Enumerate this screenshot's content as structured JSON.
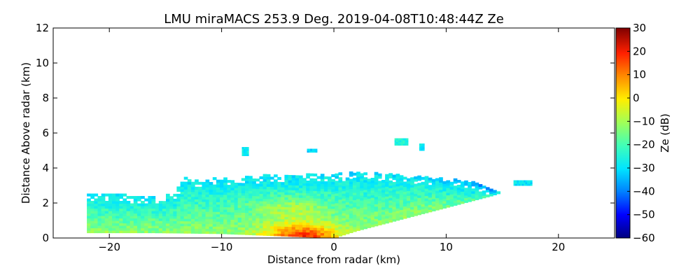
{
  "chart_data": {
    "type": "heatmap",
    "title": "LMU miraMACS 253.9 Deg. 2019-04-08T10:48:44Z  Ze",
    "xlabel": "Distance from radar (km)",
    "ylabel": "Distance Above radar  (km)",
    "xlim": [
      -25,
      25
    ],
    "ylim": [
      0,
      12
    ],
    "xticks": [
      -20,
      -10,
      0,
      10,
      20
    ],
    "xtick_labels": [
      "−20",
      "−10",
      "0",
      "10",
      "20"
    ],
    "yticks": [
      0,
      2,
      4,
      6,
      8,
      10,
      12
    ],
    "ytick_labels": [
      "0",
      "2",
      "4",
      "6",
      "8",
      "10",
      "12"
    ],
    "grid": false,
    "colorbar": {
      "label": "Ze (dB)",
      "range": [
        -60,
        30
      ],
      "ticks": [
        -60,
        -50,
        -40,
        -30,
        -20,
        -10,
        0,
        10,
        20,
        30
      ],
      "tick_labels": [
        "−60",
        "−50",
        "−40",
        "−30",
        "−20",
        "−10",
        "0",
        "10",
        "20",
        "30"
      ],
      "colormap": "jet"
    },
    "field": {
      "description_units": "range-height reflectivity scan",
      "cloud_top_km": [
        [
          -22,
          2.6
        ],
        [
          -20,
          2.55
        ],
        [
          -18,
          2.45
        ],
        [
          -16,
          2.35
        ],
        [
          -14,
          2.6
        ],
        [
          -13.5,
          3.6
        ],
        [
          -12,
          3.3
        ],
        [
          -10,
          3.5
        ],
        [
          -8,
          3.5
        ],
        [
          -6,
          3.6
        ],
        [
          -4,
          3.6
        ],
        [
          -2,
          3.65
        ],
        [
          0,
          3.7
        ],
        [
          2,
          3.75
        ],
        [
          4,
          3.7
        ],
        [
          6,
          3.6
        ],
        [
          8,
          3.5
        ],
        [
          10,
          3.4
        ],
        [
          12,
          3.3
        ],
        [
          14,
          2.8
        ],
        [
          15,
          2.6
        ]
      ],
      "cloud_base_km": [
        [
          -22,
          0.3
        ],
        [
          -16,
          0.3
        ],
        [
          -10,
          0.25
        ],
        [
          -6,
          0.15
        ],
        [
          -2,
          0.05
        ],
        [
          0,
          0.0
        ],
        [
          2,
          0.4
        ],
        [
          5,
          0.9
        ],
        [
          8,
          1.4
        ],
        [
          11,
          1.9
        ],
        [
          14,
          2.4
        ],
        [
          15,
          2.6
        ]
      ],
      "elevated_patches": [
        {
          "x": [
            -8.2,
            -7.6
          ],
          "y": [
            4.7,
            5.1
          ],
          "ze": -28
        },
        {
          "x": [
            -2.4,
            -1.6
          ],
          "y": [
            4.9,
            5.1
          ],
          "ze": -32
        },
        {
          "x": [
            5.4,
            6.6
          ],
          "y": [
            5.3,
            5.6
          ],
          "ze": -25
        },
        {
          "x": [
            7.6,
            8.0
          ],
          "y": [
            5.0,
            5.3
          ],
          "ze": -30
        },
        {
          "x": [
            16.0,
            17.6
          ],
          "y": [
            3.0,
            3.3
          ],
          "ze": -30
        }
      ],
      "core_ze_max": 20
    }
  }
}
